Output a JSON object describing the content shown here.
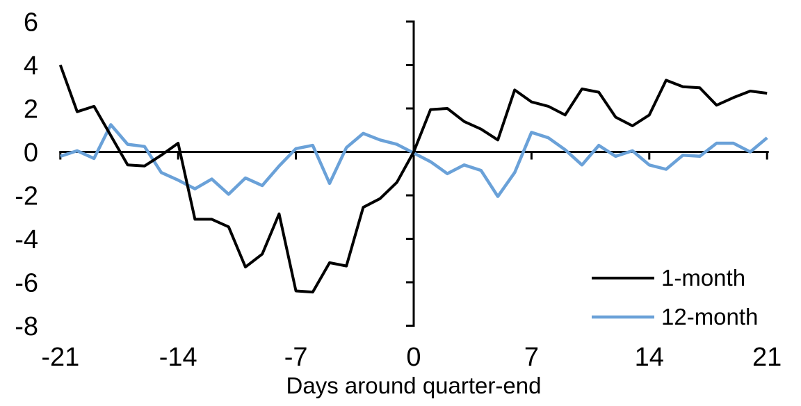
{
  "chart_data": {
    "type": "line",
    "title": "",
    "xlabel": "Days around quarter-end",
    "ylabel": "",
    "xlim": [
      -21,
      21
    ],
    "ylim": [
      -8,
      6
    ],
    "xticks": [
      -21,
      -14,
      -7,
      0,
      7,
      14,
      21
    ],
    "yticks": [
      6,
      4,
      2,
      0,
      -2,
      -4,
      -6,
      -8
    ],
    "grid": false,
    "legend_position": "inside-bottom-right",
    "axis_color": "#000000",
    "x": [
      -21,
      -20,
      -19,
      -18,
      -17,
      -16,
      -15,
      -14,
      -13,
      -12,
      -11,
      -10,
      -9,
      -8,
      -7,
      -6,
      -5,
      -4,
      -3,
      -2,
      -1,
      0,
      1,
      2,
      3,
      4,
      5,
      6,
      7,
      8,
      9,
      10,
      11,
      12,
      13,
      14,
      15,
      16,
      17,
      18,
      19,
      20,
      21
    ],
    "series": [
      {
        "name": "1-month",
        "color": "#000000",
        "values": [
          4.0,
          1.85,
          2.1,
          0.75,
          -0.6,
          -0.65,
          -0.15,
          0.4,
          -3.1,
          -3.1,
          -3.45,
          -5.3,
          -4.7,
          -2.85,
          -6.4,
          -6.45,
          -5.1,
          -5.25,
          -2.55,
          -2.15,
          -1.4,
          0.0,
          1.95,
          2.0,
          1.4,
          1.05,
          0.55,
          2.85,
          2.3,
          2.1,
          1.7,
          2.9,
          2.75,
          1.6,
          1.2,
          1.7,
          3.3,
          3.0,
          2.95,
          2.15,
          2.5,
          2.8,
          2.7
        ]
      },
      {
        "name": "12-month",
        "color": "#6AA1D8",
        "values": [
          -0.2,
          0.05,
          -0.3,
          1.25,
          0.35,
          0.25,
          -0.95,
          -1.3,
          -1.7,
          -1.25,
          -1.95,
          -1.2,
          -1.55,
          -0.65,
          0.15,
          0.3,
          -1.45,
          0.2,
          0.85,
          0.55,
          0.35,
          -0.05,
          -0.45,
          -1.0,
          -0.6,
          -0.85,
          -2.05,
          -0.95,
          0.9,
          0.65,
          0.1,
          -0.6,
          0.3,
          -0.2,
          0.05,
          -0.6,
          -0.8,
          -0.15,
          -0.2,
          0.4,
          0.4,
          0.0,
          0.65
        ]
      }
    ]
  }
}
